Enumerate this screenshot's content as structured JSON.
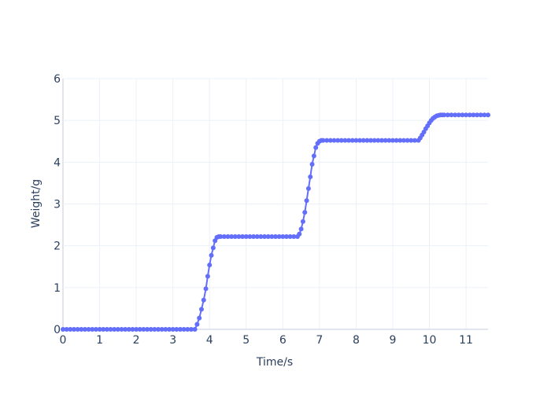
{
  "chart_data": {
    "type": "line",
    "xlabel": "Time/s",
    "ylabel": "Weight/g",
    "xlim": [
      0,
      11.6
    ],
    "ylim": [
      0,
      6
    ],
    "xticks": [
      0,
      1,
      2,
      3,
      4,
      5,
      6,
      7,
      8,
      9,
      10,
      11
    ],
    "yticks": [
      0,
      1,
      2,
      3,
      4,
      5,
      6
    ],
    "grid": true,
    "colors": {
      "series": "#636efa",
      "grid": "#ebf0f8",
      "text": "#2a3f5f"
    },
    "series": [
      {
        "mode": "lines+markers",
        "x": [
          0,
          0.1,
          0.2,
          0.3,
          0.4,
          0.5,
          0.6,
          0.7,
          0.8,
          0.9,
          1.0,
          1.1,
          1.2,
          1.3,
          1.4,
          1.5,
          1.6,
          1.7,
          1.8,
          1.9,
          2.0,
          2.1,
          2.2,
          2.3,
          2.4,
          2.5,
          2.6,
          2.7,
          2.8,
          2.9,
          3.0,
          3.1,
          3.2,
          3.3,
          3.4,
          3.5,
          3.6,
          3.66,
          3.72,
          3.78,
          3.84,
          3.9,
          3.95,
          4.0,
          4.05,
          4.1,
          4.15,
          4.2,
          4.25,
          4.3,
          4.4,
          4.5,
          4.6,
          4.7,
          4.8,
          4.9,
          5.0,
          5.1,
          5.2,
          5.3,
          5.4,
          5.5,
          5.6,
          5.7,
          5.8,
          5.9,
          6.0,
          6.1,
          6.2,
          6.3,
          6.4,
          6.45,
          6.5,
          6.55,
          6.6,
          6.65,
          6.7,
          6.75,
          6.8,
          6.85,
          6.9,
          6.95,
          7.0,
          7.05,
          7.1,
          7.2,
          7.3,
          7.4,
          7.5,
          7.6,
          7.7,
          7.8,
          7.9,
          8.0,
          8.1,
          8.2,
          8.3,
          8.4,
          8.5,
          8.6,
          8.7,
          8.8,
          8.9,
          9.0,
          9.1,
          9.2,
          9.3,
          9.4,
          9.5,
          9.6,
          9.7,
          9.75,
          9.8,
          9.85,
          9.9,
          9.95,
          10.0,
          10.05,
          10.1,
          10.15,
          10.2,
          10.25,
          10.3,
          10.35,
          10.4,
          10.5,
          10.6,
          10.7,
          10.8,
          10.9,
          11.0,
          11.1,
          11.2,
          11.3,
          11.4,
          11.5,
          11.6
        ],
        "y": [
          0,
          0,
          0,
          0,
          0,
          0,
          0,
          0,
          0,
          0,
          0,
          0,
          0,
          0,
          0,
          0,
          0,
          0,
          0,
          0,
          0,
          0,
          0,
          0,
          0,
          0,
          0,
          0,
          0,
          0,
          0,
          0,
          0,
          0,
          0,
          0,
          0,
          0.12,
          0.27,
          0.48,
          0.7,
          0.97,
          1.27,
          1.54,
          1.77,
          1.95,
          2.12,
          2.2,
          2.22,
          2.22,
          2.22,
          2.22,
          2.22,
          2.22,
          2.22,
          2.22,
          2.22,
          2.22,
          2.22,
          2.22,
          2.22,
          2.22,
          2.22,
          2.22,
          2.22,
          2.22,
          2.22,
          2.22,
          2.22,
          2.22,
          2.22,
          2.28,
          2.4,
          2.58,
          2.8,
          3.08,
          3.37,
          3.65,
          3.95,
          4.15,
          4.35,
          4.45,
          4.5,
          4.52,
          4.52,
          4.52,
          4.52,
          4.52,
          4.52,
          4.52,
          4.52,
          4.52,
          4.52,
          4.52,
          4.52,
          4.52,
          4.52,
          4.52,
          4.52,
          4.52,
          4.52,
          4.52,
          4.52,
          4.52,
          4.52,
          4.52,
          4.52,
          4.52,
          4.52,
          4.52,
          4.52,
          4.58,
          4.65,
          4.72,
          4.8,
          4.87,
          4.94,
          5.0,
          5.05,
          5.08,
          5.11,
          5.12,
          5.13,
          5.13,
          5.13,
          5.13,
          5.13,
          5.13,
          5.13,
          5.13,
          5.13,
          5.13,
          5.13,
          5.13,
          5.13,
          5.13,
          5.13
        ]
      }
    ]
  }
}
